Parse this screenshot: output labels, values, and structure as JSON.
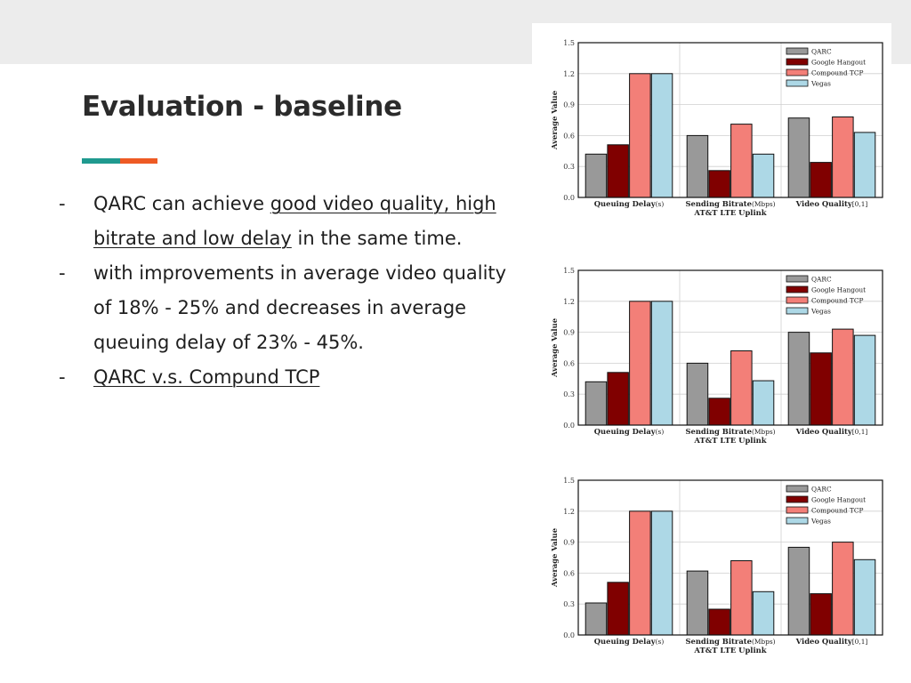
{
  "slide": {
    "title": "Evaluation - baseline",
    "bullets": [
      {
        "dash": "-",
        "parts": [
          {
            "text": "QARC can achieve ",
            "u": false
          },
          {
            "text": "good video quality, high bitrate and low delay",
            "u": true
          },
          {
            "text": " in the same time.",
            "u": false
          }
        ]
      },
      {
        "dash": "-",
        "parts": [
          {
            "text": "with improvements in average video quality of 18% - 25% and decreases in average queuing delay of 23% - 45%.",
            "u": false
          }
        ]
      },
      {
        "dash": "-",
        "parts": [
          {
            "text": "QARC v.s. Compund TCP",
            "u": true
          }
        ]
      }
    ],
    "colors": {
      "band": "#ececec",
      "accent_teal": "#1f9a8f",
      "accent_orange": "#ee5a24"
    }
  },
  "chart_data": [
    {
      "type": "bar",
      "title": "",
      "xlabel": "AT&T LTE Uplink",
      "ylabel": "Average Value",
      "ylim": [
        0,
        1.5
      ],
      "yticks": [
        "0.0",
        "0.3",
        "0.6",
        "0.9",
        "1.2",
        "1.5"
      ],
      "categories": [
        {
          "bold": "Queuing Delay",
          "unit": "(s)"
        },
        {
          "bold": "Sending Bitrate",
          "unit": "(Mbps)"
        },
        {
          "bold": "Video Quality",
          "unit": "[0,1]"
        }
      ],
      "series": [
        {
          "name": "QARC",
          "color": "#999999",
          "values": [
            0.42,
            0.6,
            0.77
          ]
        },
        {
          "name": "Google Hangout",
          "color": "#800000",
          "values": [
            0.51,
            0.26,
            0.34
          ]
        },
        {
          "name": "Compound TCP",
          "color": "#f37f78",
          "values": [
            1.2,
            0.71,
            0.78
          ]
        },
        {
          "name": "Vegas",
          "color": "#add8e6",
          "values": [
            1.2,
            0.42,
            0.63
          ]
        }
      ],
      "grid": true,
      "legend": "top-right"
    },
    {
      "type": "bar",
      "title": "",
      "xlabel": "AT&T LTE Uplink",
      "ylabel": "Average Value",
      "ylim": [
        0,
        1.5
      ],
      "yticks": [
        "0.0",
        "0.3",
        "0.6",
        "0.9",
        "1.2",
        "1.5"
      ],
      "categories": [
        {
          "bold": "Queuing Delay",
          "unit": "(s)"
        },
        {
          "bold": "Sending Bitrate",
          "unit": "(Mbps)"
        },
        {
          "bold": "Video Quality",
          "unit": "[0,1]"
        }
      ],
      "series": [
        {
          "name": "QARC",
          "color": "#999999",
          "values": [
            0.42,
            0.6,
            0.9
          ]
        },
        {
          "name": "Google Hangout",
          "color": "#800000",
          "values": [
            0.51,
            0.26,
            0.7
          ]
        },
        {
          "name": "Compound TCP",
          "color": "#f37f78",
          "values": [
            1.2,
            0.72,
            0.93
          ]
        },
        {
          "name": "Vegas",
          "color": "#add8e6",
          "values": [
            1.2,
            0.43,
            0.87
          ]
        }
      ],
      "grid": true,
      "legend": "top-right"
    },
    {
      "type": "bar",
      "title": "",
      "xlabel": "AT&T LTE Uplink",
      "ylabel": "Average Value",
      "ylim": [
        0,
        1.5
      ],
      "yticks": [
        "0.0",
        "0.3",
        "0.6",
        "0.9",
        "1.2",
        "1.5"
      ],
      "categories": [
        {
          "bold": "Queuing Delay",
          "unit": "(s)"
        },
        {
          "bold": "Sending Bitrate",
          "unit": "(Mbps)"
        },
        {
          "bold": "Video Quality",
          "unit": "[0,1]"
        }
      ],
      "series": [
        {
          "name": "QARC",
          "color": "#999999",
          "values": [
            0.31,
            0.62,
            0.85
          ]
        },
        {
          "name": "Google Hangout",
          "color": "#800000",
          "values": [
            0.51,
            0.25,
            0.4
          ]
        },
        {
          "name": "Compound TCP",
          "color": "#f37f78",
          "values": [
            1.2,
            0.72,
            0.9
          ]
        },
        {
          "name": "Vegas",
          "color": "#add8e6",
          "values": [
            1.2,
            0.42,
            0.73
          ]
        }
      ],
      "grid": true,
      "legend": "top-right"
    }
  ]
}
